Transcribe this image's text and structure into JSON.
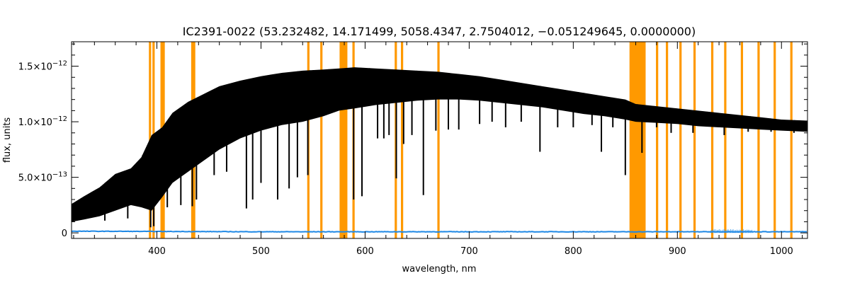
{
  "chart_data": {
    "type": "line",
    "title": "IC2391-0022    (53.232482, 14.171499, 5058.4347, 2.7504012, −0.051249645, 0.0000000)",
    "xlabel": "wavelength, nm",
    "ylabel": "flux, units",
    "xlim": [
      318,
      1025
    ],
    "ylim": [
      -5e-14,
      1.72e-12
    ],
    "x_ticks": [
      400,
      500,
      600,
      700,
      800,
      900,
      1000
    ],
    "x_tick_labels": [
      "400",
      "500",
      "600",
      "700",
      "800",
      "900",
      "1000"
    ],
    "y_ticks": [
      0,
      5e-13,
      1e-12,
      1.5e-12
    ],
    "y_tick_labels": [
      {
        "mantissa": "0",
        "exponent": ""
      },
      {
        "mantissa": "5.0×10",
        "exponent": "−13"
      },
      {
        "mantissa": "1.0×10",
        "exponent": "−12"
      },
      {
        "mantissa": "1.5×10",
        "exponent": "−12"
      }
    ],
    "grid": false,
    "colors": {
      "spectrum": "#000000",
      "error": "#1e88e5",
      "masks": "#ff9900",
      "axes": "#000000"
    },
    "series": [
      {
        "x": [
          318,
          330,
          345,
          360,
          375,
          385,
          395,
          405,
          415,
          430,
          445,
          460,
          480,
          500,
          520,
          540,
          560,
          575,
          590,
          610,
          630,
          650,
          670,
          690,
          710,
          730,
          750,
          770,
          790,
          810,
          830,
          850,
          860,
          880,
          900,
          920,
          940,
          960,
          980,
          1000,
          1025
        ],
        "upper": [
          2.6e-13,
          3.3e-13,
          4.1e-13,
          5.3e-13,
          5.8e-13,
          6.8e-13,
          8.8e-13,
          9.5e-13,
          1.08e-12,
          1.18e-12,
          1.25e-12,
          1.32e-12,
          1.37e-12,
          1.41e-12,
          1.44e-12,
          1.46e-12,
          1.47e-12,
          1.48e-12,
          1.49e-12,
          1.48e-12,
          1.47e-12,
          1.46e-12,
          1.45e-12,
          1.43e-12,
          1.41e-12,
          1.38e-12,
          1.35e-12,
          1.32e-12,
          1.29e-12,
          1.26e-12,
          1.23e-12,
          1.2e-12,
          1.16e-12,
          1.14e-12,
          1.12e-12,
          1.1e-12,
          1.08e-12,
          1.06e-12,
          1.04e-12,
          1.02e-12,
          1.01e-12
        ],
        "lower": [
          1e-13,
          1.2e-13,
          1.5e-13,
          2e-13,
          2.5e-13,
          2.3e-13,
          2e-13,
          3.2e-13,
          4.5e-13,
          5.5e-13,
          6.5e-13,
          7.5e-13,
          8.5e-13,
          9.2e-13,
          9.7e-13,
          1e-12,
          1.05e-12,
          1.1e-12,
          1.12e-12,
          1.15e-12,
          1.17e-12,
          1.19e-12,
          1.2e-12,
          1.2e-12,
          1.19e-12,
          1.17e-12,
          1.15e-12,
          1.13e-12,
          1.1e-12,
          1.07e-12,
          1.05e-12,
          1.02e-12,
          1e-12,
          9.9e-13,
          9.8e-13,
          9.6e-13,
          9.5e-13,
          9.4e-13,
          9.3e-13,
          9.2e-13,
          9.1e-13
        ]
      },
      {
        "name": "error",
        "x": [
          318,
          500,
          700,
          900,
          1025
        ],
        "y": [
          1.5e-14,
          1e-14,
          1e-14,
          1e-14,
          1e-14
        ]
      }
    ],
    "absorption_dips": [
      {
        "x": 350,
        "y": 1.1e-13
      },
      {
        "x": 372,
        "y": 1.3e-13
      },
      {
        "x": 394,
        "y": 5e-14
      },
      {
        "x": 397,
        "y": 6e-14
      },
      {
        "x": 410,
        "y": 2.3e-13
      },
      {
        "x": 423,
        "y": 2.5e-13
      },
      {
        "x": 434,
        "y": 2.4e-13
      },
      {
        "x": 438,
        "y": 3e-13
      },
      {
        "x": 455,
        "y": 5.2e-13
      },
      {
        "x": 467,
        "y": 5.5e-13
      },
      {
        "x": 486,
        "y": 2.2e-13
      },
      {
        "x": 492,
        "y": 3e-13
      },
      {
        "x": 500,
        "y": 4.5e-13
      },
      {
        "x": 516,
        "y": 3e-13
      },
      {
        "x": 527,
        "y": 4e-13
      },
      {
        "x": 535,
        "y": 5e-13
      },
      {
        "x": 545,
        "y": 5.2e-13
      },
      {
        "x": 589,
        "y": 3e-13
      },
      {
        "x": 597,
        "y": 3.3e-13
      },
      {
        "x": 612,
        "y": 8.5e-13
      },
      {
        "x": 618,
        "y": 8.5e-13
      },
      {
        "x": 623,
        "y": 8.8e-13
      },
      {
        "x": 630,
        "y": 4.9e-13
      },
      {
        "x": 637,
        "y": 8e-13
      },
      {
        "x": 645,
        "y": 8.8e-13
      },
      {
        "x": 656,
        "y": 3.4e-13
      },
      {
        "x": 668,
        "y": 9.2e-13
      },
      {
        "x": 680,
        "y": 9.3e-13
      },
      {
        "x": 690,
        "y": 9.3e-13
      },
      {
        "x": 710,
        "y": 9.8e-13
      },
      {
        "x": 722,
        "y": 1e-12
      },
      {
        "x": 735,
        "y": 9.5e-13
      },
      {
        "x": 750,
        "y": 1e-12
      },
      {
        "x": 768,
        "y": 7.3e-13
      },
      {
        "x": 785,
        "y": 9.5e-13
      },
      {
        "x": 800,
        "y": 9.5e-13
      },
      {
        "x": 818,
        "y": 9.7e-13
      },
      {
        "x": 827,
        "y": 7.3e-13
      },
      {
        "x": 838,
        "y": 9.5e-13
      },
      {
        "x": 850,
        "y": 5.2e-13
      },
      {
        "x": 866,
        "y": 7.2e-13
      },
      {
        "x": 880,
        "y": 9.5e-13
      },
      {
        "x": 894,
        "y": 9e-13
      },
      {
        "x": 915,
        "y": 9e-13
      },
      {
        "x": 945,
        "y": 8.8e-13
      },
      {
        "x": 968,
        "y": 9.1e-13
      },
      {
        "x": 990,
        "y": 9.1e-13
      },
      {
        "x": 1012,
        "y": 9e-13
      }
    ],
    "masked_lines": [
      393.4,
      396.8,
      404.5,
      406.5,
      434.0,
      435.8,
      545.5,
      558.0,
      588.9,
      629.5,
      635.5,
      670.5,
      880.5,
      890.0,
      903.0,
      916.5,
      933.5,
      946.0,
      962.0,
      978.0,
      993.5,
      1009.5
    ],
    "masked_bands": [
      [
        575.5,
        583.0
      ],
      [
        854.0,
        869.5
      ]
    ]
  }
}
